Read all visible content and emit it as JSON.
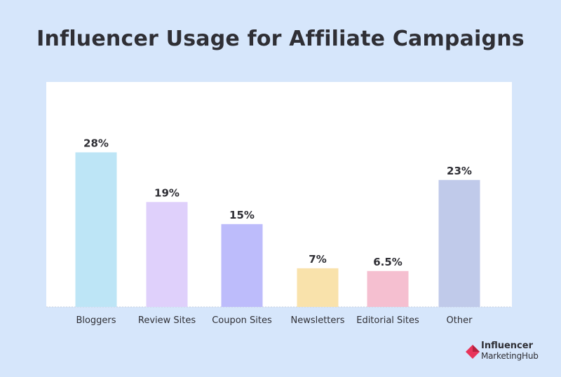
{
  "title": "Influencer Usage for Affiliate Campaigns",
  "logo": {
    "line1": "Influencer",
    "line2": "MarketingHub",
    "color": "#e8345a"
  },
  "chart_data": {
    "type": "bar",
    "title": "Influencer Usage for Affiliate Campaigns",
    "xlabel": "",
    "ylabel": "",
    "categories": [
      "Bloggers",
      "Review Sites",
      "Coupon Sites",
      "Newsletters",
      "Editorial Sites",
      "Other"
    ],
    "values": [
      28,
      19,
      15,
      7,
      6.5,
      23
    ],
    "labels": [
      "28%",
      "19%",
      "15%",
      "7%",
      "6.5%",
      "23%"
    ],
    "colors": [
      "#bde5f6",
      "#dfd0fb",
      "#bdbcfb",
      "#f9e2ab",
      "#f5bfd0",
      "#c0caea"
    ],
    "ylim": [
      0,
      33
    ],
    "grid": false,
    "legend": "none"
  }
}
